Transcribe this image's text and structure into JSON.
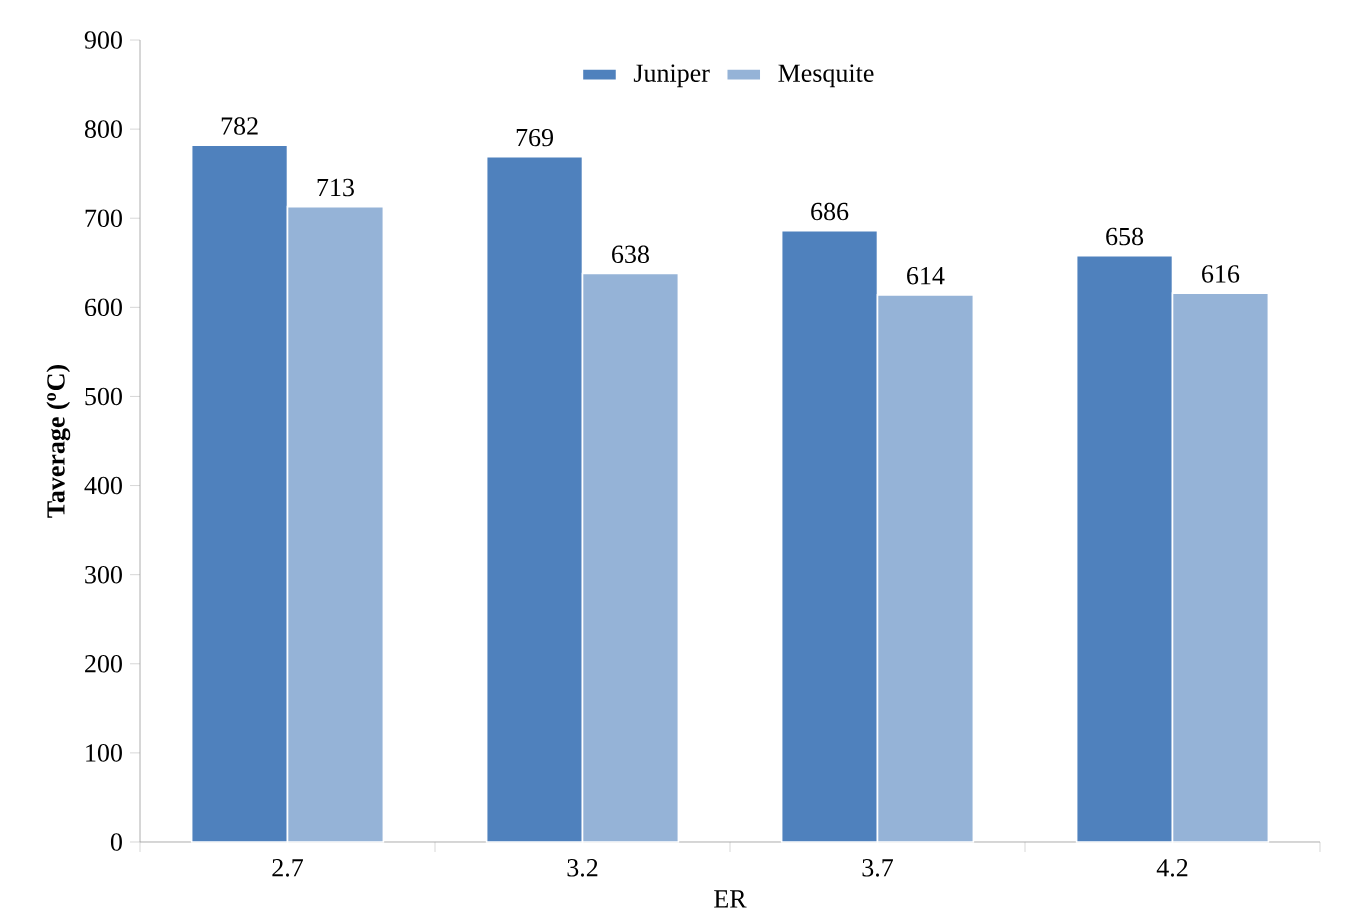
{
  "chart_data": {
    "type": "bar",
    "xlabel": "ER",
    "ylabel": "Taverage ($^{o}$C)",
    "categories": [
      "2.7",
      "3.2",
      "3.7",
      "4.2"
    ],
    "series": [
      {
        "name": "Juniper",
        "color": "#4f81bd",
        "values": [
          782,
          769,
          686,
          658
        ]
      },
      {
        "name": "Mesquite",
        "color": "#95b3d7",
        "values": [
          713,
          638,
          614,
          616
        ]
      }
    ],
    "ylim": [
      0,
      900
    ],
    "yticks": [
      0,
      100,
      200,
      300,
      400,
      500,
      600,
      700,
      800,
      900
    ],
    "data_labels": true,
    "legend": "top",
    "grid": false
  }
}
